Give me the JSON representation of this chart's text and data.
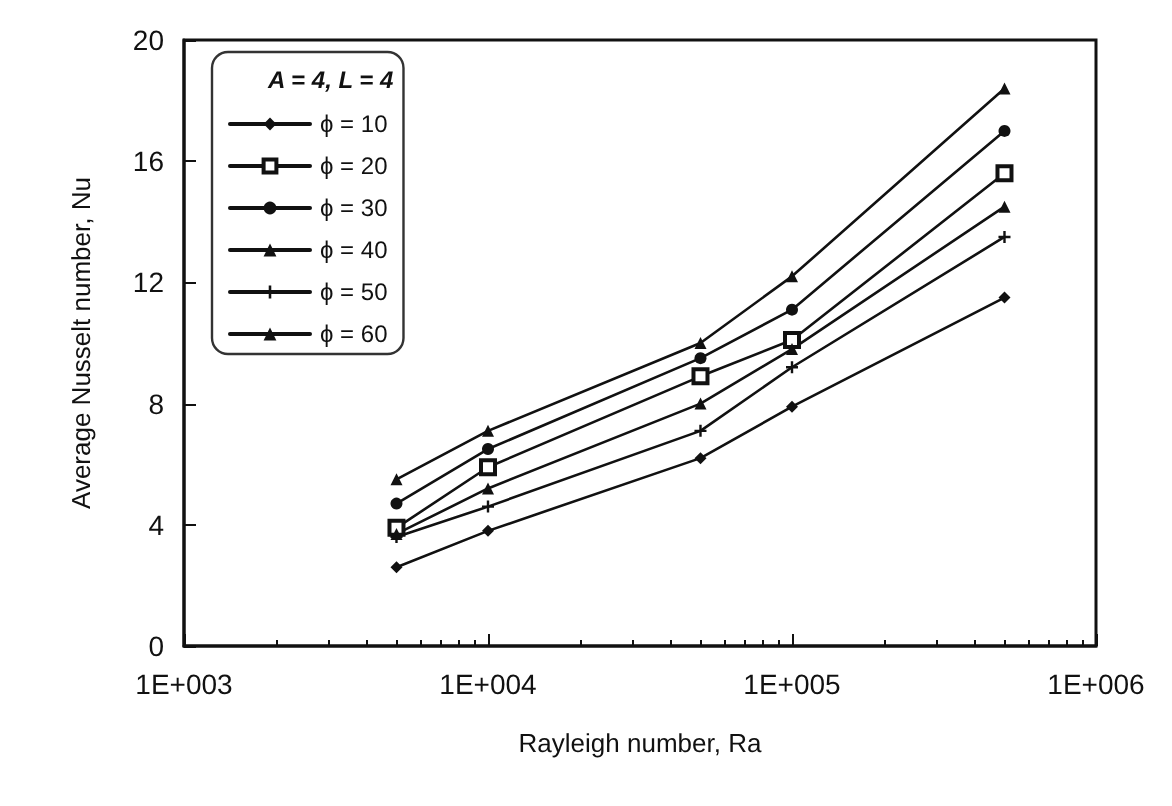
{
  "chart_data": {
    "type": "line",
    "xlabel": "Rayleigh number, Ra",
    "ylabel": "Average Nusselt number, Nu",
    "legend_title": "A = 4, L = 4",
    "x": [
      5000,
      10000,
      50000,
      100000,
      500000
    ],
    "series": [
      {
        "name": "ϕ = 10",
        "color": "#111111",
        "marker": "diamond",
        "values": [
          2.6,
          3.8,
          6.2,
          7.9,
          11.5
        ]
      },
      {
        "name": "ϕ = 20",
        "color": "#111111",
        "marker": "square",
        "values": [
          3.9,
          5.9,
          8.9,
          10.1,
          15.6
        ]
      },
      {
        "name": "ϕ = 30",
        "color": "#111111",
        "marker": "circle",
        "values": [
          4.7,
          6.5,
          9.5,
          11.1,
          17.0
        ]
      },
      {
        "name": "ϕ = 40",
        "color": "#111111",
        "marker": "triangle",
        "values": [
          3.7,
          5.2,
          8.0,
          9.8,
          14.5
        ]
      },
      {
        "name": "ϕ = 50",
        "color": "#111111",
        "marker": "cross",
        "values": [
          3.6,
          4.6,
          7.1,
          9.2,
          13.5
        ]
      },
      {
        "name": "ϕ = 60",
        "color": "#111111",
        "marker": "triangle",
        "values": [
          5.5,
          7.1,
          10.0,
          12.2,
          18.4
        ]
      }
    ],
    "log": "x",
    "xlim": [
      1000,
      1000000
    ],
    "xticks": [
      {
        "value": 1000,
        "label": "1E+003"
      },
      {
        "value": 10000,
        "label": "1E+004"
      },
      {
        "value": 100000,
        "label": "1E+005"
      },
      {
        "value": 1000000,
        "label": "1E+006"
      }
    ],
    "ylim": [
      0,
      20
    ],
    "yticks": [
      0,
      4,
      8,
      12,
      16,
      20
    ],
    "grid": false,
    "legend": "top left",
    "line_style": "solid"
  }
}
